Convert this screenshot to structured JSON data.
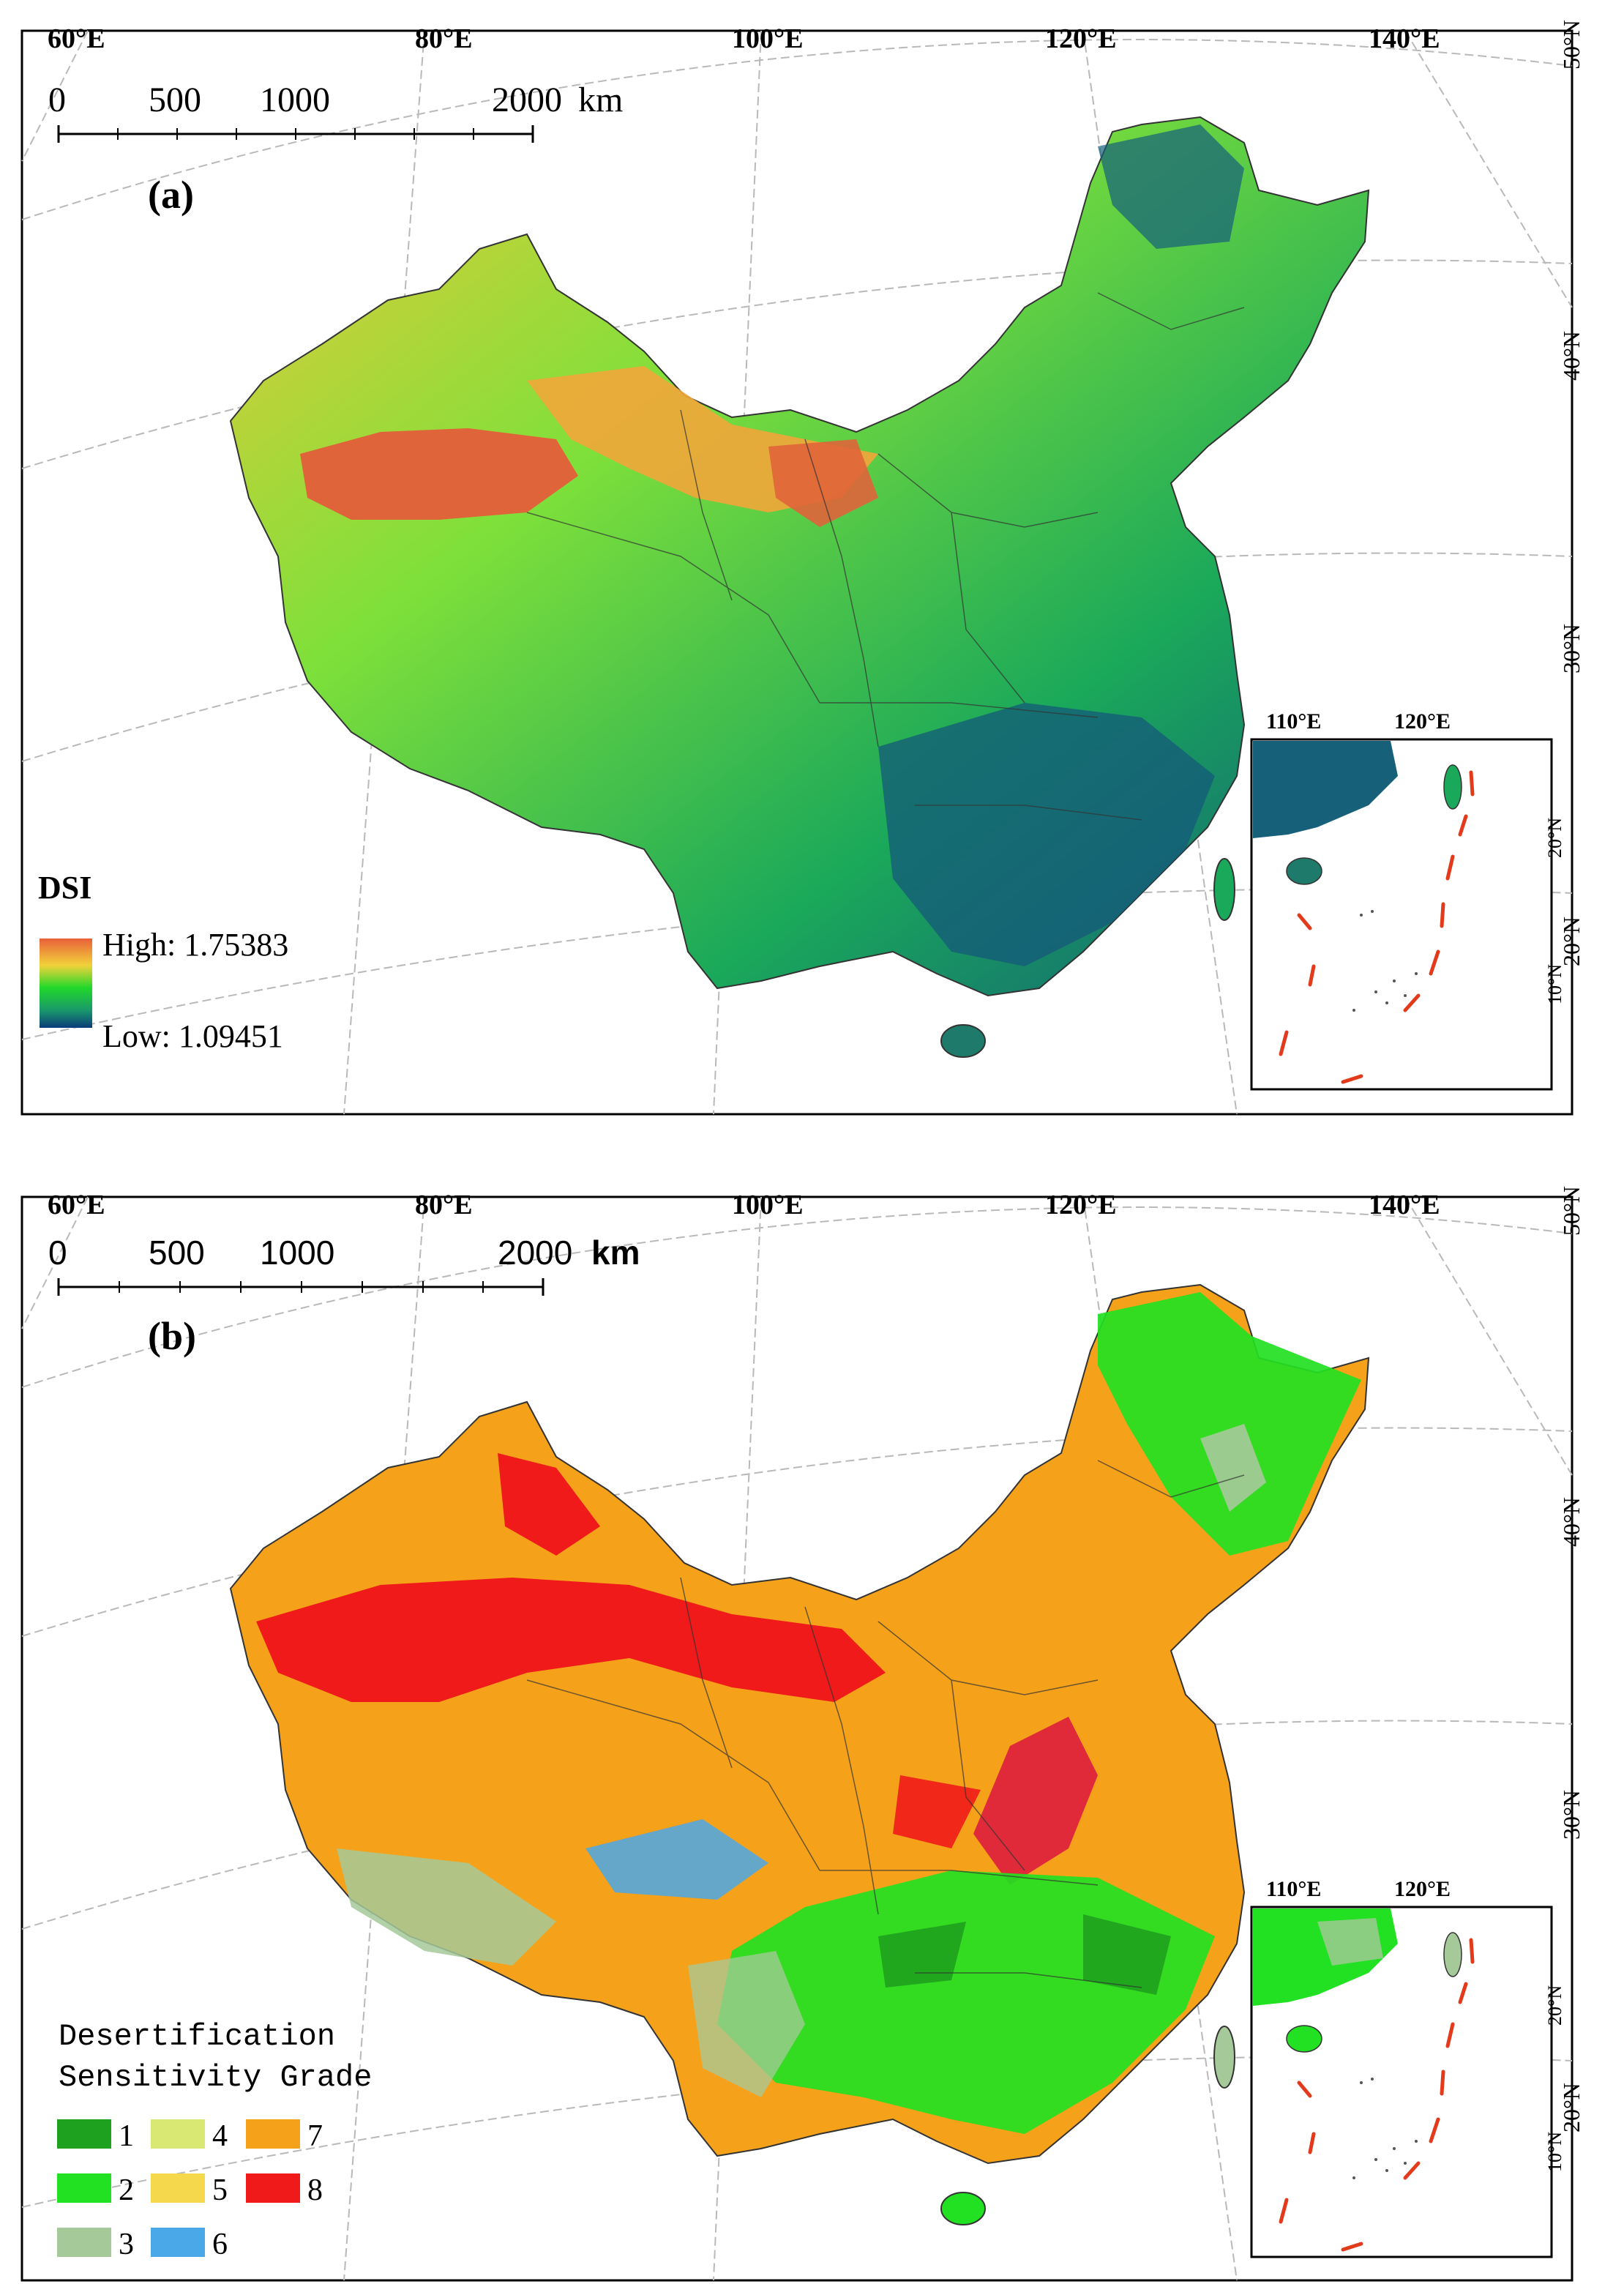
{
  "longitude_labels": [
    "60°E",
    "80°E",
    "100°E",
    "120°E",
    "140°E"
  ],
  "latitude_labels": [
    "50°N",
    "40°N",
    "30°N",
    "20°N"
  ],
  "inset": {
    "longitude_labels": [
      "110°E",
      "120°E"
    ],
    "latitude_labels": [
      "20°N",
      "10°N"
    ]
  },
  "scale_bar": {
    "ticks": [
      "0",
      "500",
      "1000",
      "2000"
    ],
    "unit": "km"
  },
  "panel_a": {
    "label": "(a)",
    "legend": {
      "title": "DSI",
      "high": "High: 1.75383",
      "low": "Low: 1.09451",
      "colors": {
        "high": "#e8603a",
        "mid_high": "#f2d23a",
        "mid": "#22d82a",
        "low": "#0a3c7a"
      }
    }
  },
  "panel_b": {
    "label": "(b)",
    "legend": {
      "title_line1": "Desertification",
      "title_line2": "Sensitivity Grade",
      "grades": [
        {
          "label": "1",
          "color": "#1ea11e"
        },
        {
          "label": "2",
          "color": "#22e022"
        },
        {
          "label": "3",
          "color": "#a6c99a"
        },
        {
          "label": "4",
          "color": "#d8e873"
        },
        {
          "label": "5",
          "color": "#f5d84c"
        },
        {
          "label": "6",
          "color": "#4aa8e8"
        },
        {
          "label": "7",
          "color": "#f5a21a"
        },
        {
          "label": "8",
          "color": "#f01a1a"
        }
      ]
    }
  }
}
